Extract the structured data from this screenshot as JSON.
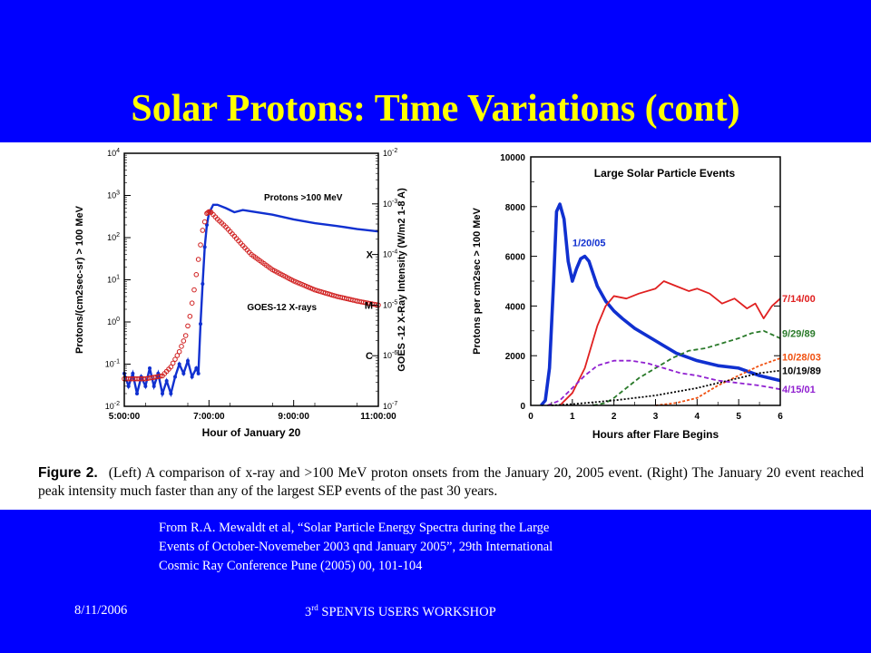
{
  "slide": {
    "title": "Solar Protons: Time Variations (cont)",
    "caption_label": "Figure 2.",
    "caption_text": "(Left) A comparison of x-ray and >100 MeV proton onsets from the January 20, 2005 event. (Right) The January 20 event reached peak intensity much faster than any of the largest SEP events of the past 30 years.",
    "source_lines": [
      "From R.A. Mewaldt et al, “Solar Particle Energy Spectra during the Large",
      "Events of October-Novemeber 2003 qnd January 2005”, 29th International",
      "Cosmic Ray Conference Pune (2005) 00, 101-104"
    ],
    "footer_date": "8/11/2006",
    "footer_event_prefix": "3",
    "footer_event_sup": "rd",
    "footer_event_rest": " SPENVIS USERS WORKSHOP",
    "colors": {
      "background": "#0000FF",
      "title": "#FFFF00",
      "text": "#FFFFFF"
    }
  },
  "chart_data": [
    {
      "type": "line",
      "xlabel": "Hour of January 20",
      "ylabel": "Protons/(cm2sec-sr) > 100 MeV",
      "ylabel_right": "GOES -12 X-Ray Intensity (W/m2 1-8 A)",
      "x_ticks": [
        "5:00:00",
        "7:00:00",
        "9:00:00",
        "11:00:00"
      ],
      "xlim": [
        5,
        11
      ],
      "y_scale": "log",
      "ylim": [
        0.01,
        10000
      ],
      "y_ticks": [
        "10-2",
        "10-1",
        "100",
        "101",
        "102",
        "103",
        "104"
      ],
      "y2_scale": "log",
      "y2lim": [
        1e-07,
        0.01
      ],
      "y2_ticks": [
        "10-7",
        "10-6",
        "10-5",
        "10-4",
        "10-3",
        "10-2"
      ],
      "y2_class_labels": [
        {
          "label": "C",
          "value": 1e-06
        },
        {
          "label": "M",
          "value": 1e-05
        },
        {
          "label": "X",
          "value": 0.0001
        }
      ],
      "series": [
        {
          "name": "Protons >100 MeV",
          "color": "#1030D0",
          "axis": "left",
          "x": [
            5.0,
            5.1,
            5.2,
            5.3,
            5.4,
            5.5,
            5.6,
            5.7,
            5.8,
            5.9,
            6.0,
            6.1,
            6.2,
            6.3,
            6.4,
            6.5,
            6.6,
            6.7,
            6.75,
            6.8,
            6.85,
            6.9,
            6.95,
            7.0,
            7.1,
            7.2,
            7.4,
            7.6,
            7.8,
            8.0,
            8.5,
            9.0,
            9.5,
            10.0,
            10.5,
            11.0
          ],
          "y": [
            0.06,
            0.03,
            0.06,
            0.02,
            0.05,
            0.03,
            0.08,
            0.03,
            0.06,
            0.02,
            0.04,
            0.02,
            0.05,
            0.1,
            0.06,
            0.12,
            0.05,
            0.08,
            0.06,
            0.9,
            8,
            60,
            200,
            380,
            600,
            600,
            500,
            400,
            450,
            420,
            350,
            270,
            220,
            190,
            160,
            140
          ]
        },
        {
          "name": "GOES-12 X-rays",
          "color": "#D02020",
          "axis": "right",
          "x": [
            5.0,
            5.5,
            5.9,
            6.1,
            6.3,
            6.45,
            6.55,
            6.65,
            6.75,
            6.85,
            6.95,
            7.0,
            7.05,
            7.2,
            7.4,
            7.6,
            7.8,
            8.0,
            8.5,
            9.0,
            9.5,
            10.0,
            10.5,
            11.0
          ],
          "y": [
            3.5e-07,
            3.5e-07,
            4e-07,
            6e-07,
            1.2e-06,
            2.5e-06,
            6e-06,
            2e-05,
            8e-05,
            0.0003,
            0.00065,
            0.0007,
            0.00068,
            0.0005,
            0.00035,
            0.00023,
            0.00015,
            0.0001,
            5e-05,
            3e-05,
            2e-05,
            1.5e-05,
            1.2e-05,
            1e-05
          ]
        }
      ]
    },
    {
      "type": "line",
      "title": "Large Solar Particle Events",
      "xlabel": "Hours after Flare Begins",
      "ylabel": "Protons per cm2sec > 100 MeV",
      "xlim": [
        0,
        6
      ],
      "x_ticks": [
        0,
        1,
        2,
        3,
        4,
        5,
        6
      ],
      "ylim": [
        0,
        10000
      ],
      "y_ticks": [
        0,
        2000,
        4000,
        6000,
        8000,
        10000
      ],
      "series": [
        {
          "name": "1/20/05",
          "color": "#1030D0",
          "dash": "solid",
          "x": [
            0.25,
            0.35,
            0.45,
            0.55,
            0.62,
            0.7,
            0.8,
            0.9,
            1.0,
            1.1,
            1.2,
            1.3,
            1.4,
            1.5,
            1.6,
            1.8,
            2.0,
            2.2,
            2.5,
            3.0,
            3.5,
            4.0,
            4.5,
            5.0,
            5.5,
            6.0
          ],
          "y": [
            0,
            200,
            1500,
            5000,
            7800,
            8100,
            7500,
            5800,
            5000,
            5500,
            5900,
            6000,
            5800,
            5300,
            4800,
            4200,
            3800,
            3500,
            3100,
            2600,
            2100,
            1800,
            1600,
            1500,
            1200,
            1000
          ]
        },
        {
          "name": "7/14/00",
          "color": "#E02020",
          "dash": "solid",
          "x": [
            0.7,
            1.0,
            1.3,
            1.6,
            1.8,
            2.0,
            2.3,
            2.6,
            3.0,
            3.2,
            3.5,
            3.8,
            4.0,
            4.3,
            4.6,
            4.9,
            5.2,
            5.4,
            5.6,
            5.8,
            6.0
          ],
          "y": [
            0,
            500,
            1500,
            3200,
            4000,
            4400,
            4300,
            4500,
            4700,
            5000,
            4800,
            4600,
            4700,
            4500,
            4100,
            4300,
            3900,
            4100,
            3500,
            4000,
            4300
          ]
        },
        {
          "name": "9/29/89",
          "color": "#2A7A2A",
          "dash": "5,3",
          "x": [
            1.5,
            1.8,
            2.0,
            2.3,
            2.6,
            3.0,
            3.4,
            3.8,
            4.2,
            4.6,
            5.0,
            5.3,
            5.6,
            6.0
          ],
          "y": [
            0,
            100,
            300,
            700,
            1100,
            1500,
            1900,
            2200,
            2300,
            2500,
            2700,
            2900,
            3000,
            2700
          ]
        },
        {
          "name": "10/28/03",
          "color": "#F05010",
          "dash": "3,2",
          "x": [
            3.0,
            3.5,
            4.0,
            4.5,
            5.0,
            5.5,
            6.0
          ],
          "y": [
            0,
            100,
            300,
            800,
            1200,
            1600,
            1900
          ]
        },
        {
          "name": "10/19/89",
          "color": "#000000",
          "dash": "2,2",
          "x": [
            0.5,
            1.0,
            2.0,
            3.0,
            4.0,
            5.0,
            5.5,
            6.0
          ],
          "y": [
            0,
            50,
            200,
            400,
            700,
            1100,
            1300,
            1400
          ]
        },
        {
          "name": "4/15/01",
          "color": "#9020D0",
          "dash": "5,3",
          "x": [
            0.4,
            0.7,
            1.0,
            1.3,
            1.6,
            2.0,
            2.4,
            2.8,
            3.2,
            3.6,
            4.0,
            4.5,
            5.0,
            5.5,
            6.0
          ],
          "y": [
            0,
            200,
            700,
            1200,
            1600,
            1800,
            1800,
            1700,
            1500,
            1300,
            1200,
            1000,
            900,
            800,
            650
          ]
        }
      ]
    }
  ]
}
